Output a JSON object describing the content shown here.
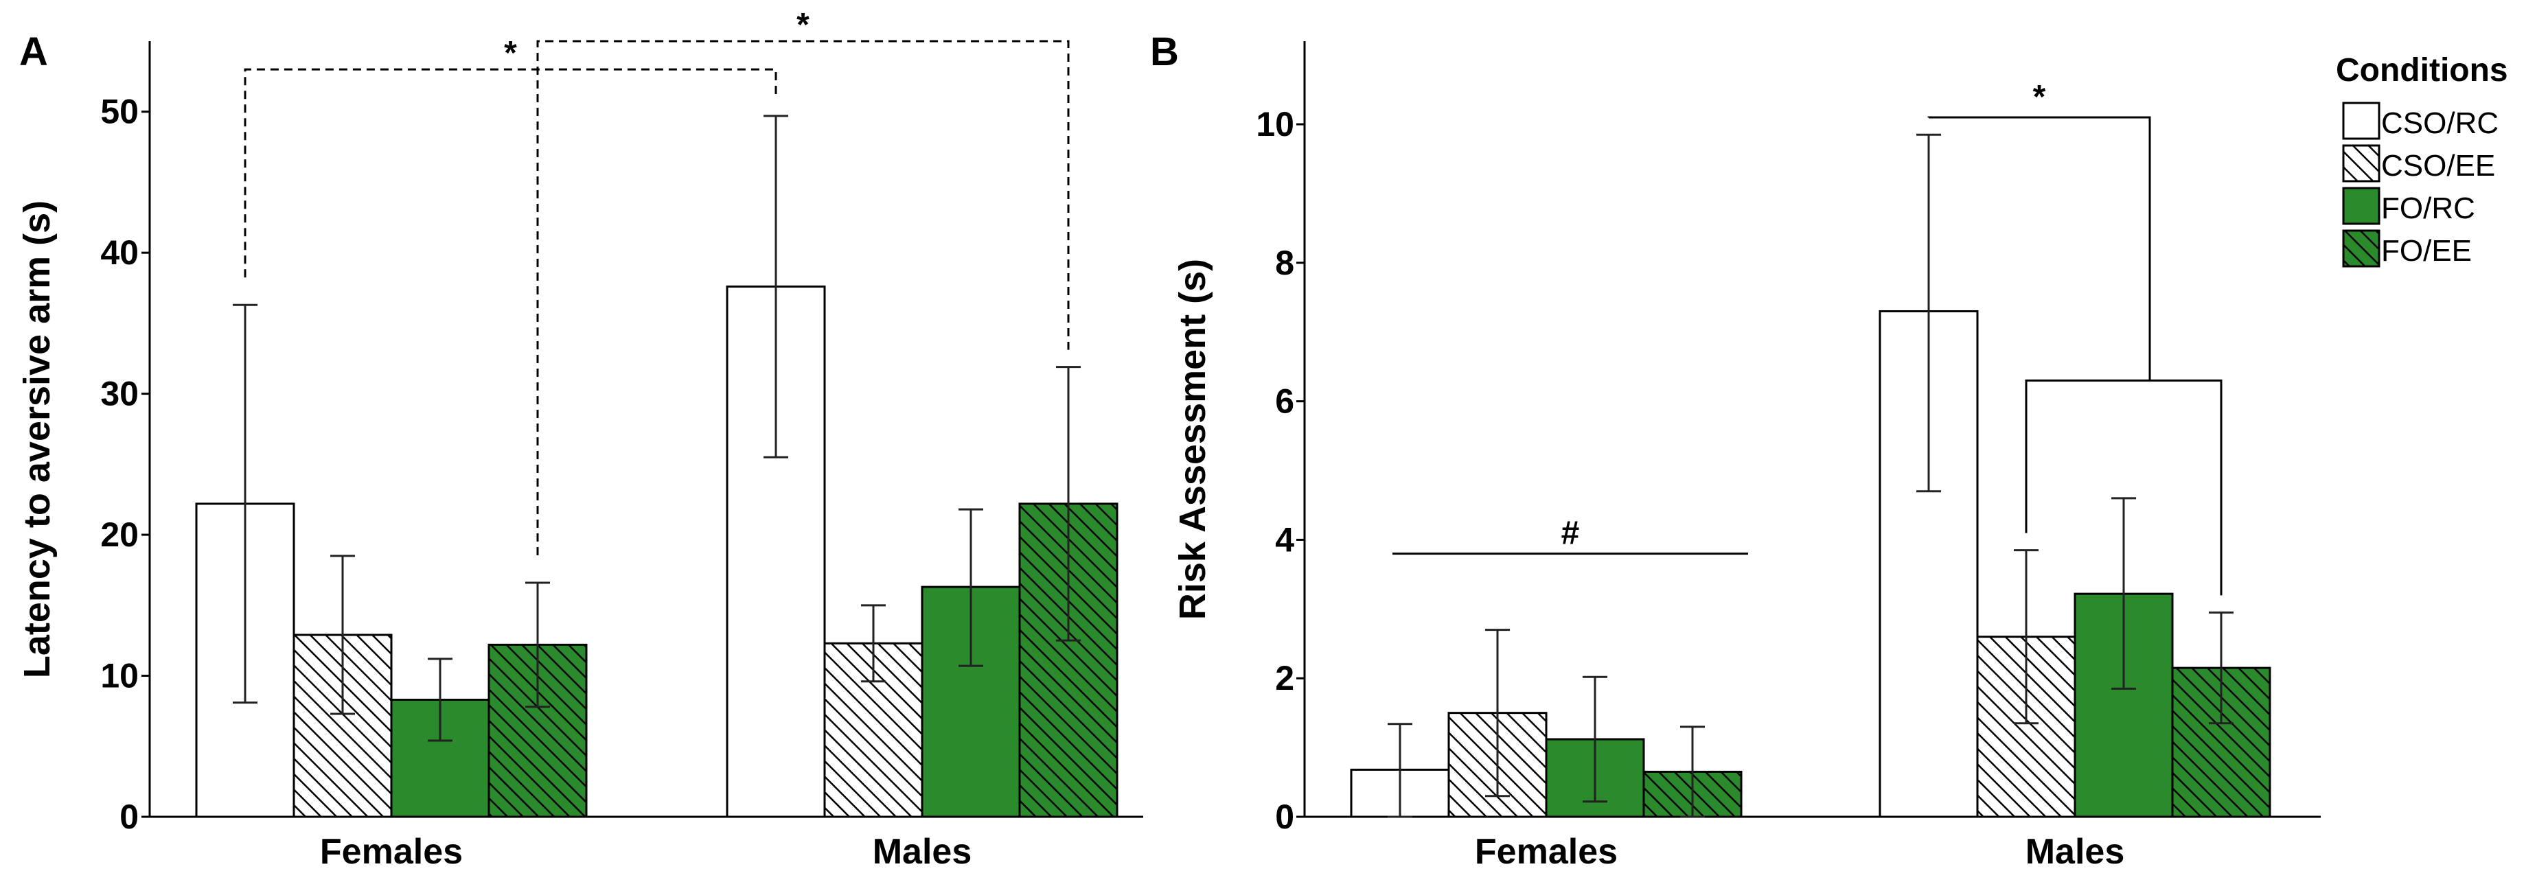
{
  "colors": {
    "green": "#2b8a2b",
    "white": "#ffffff",
    "hatch": "#000000"
  },
  "legend": {
    "title": "Conditions",
    "entries": [
      {
        "label": "CSO/RC",
        "fill": "white",
        "hatched": false
      },
      {
        "label": "CSO/EE",
        "fill": "white",
        "hatched": true
      },
      {
        "label": "FO/RC",
        "fill": "green",
        "hatched": false
      },
      {
        "label": "FO/EE",
        "fill": "green",
        "hatched": true
      }
    ]
  },
  "chart_data": [
    {
      "panel": "A",
      "type": "bar",
      "ylabel": "Latency to aversive arm (s)",
      "ylim": [
        0,
        55
      ],
      "yticks": [
        0,
        10,
        20,
        30,
        40,
        50
      ],
      "categories": [
        "Females",
        "Males"
      ],
      "series": [
        {
          "name": "CSO/RC",
          "values": [
            22.2,
            37.6
          ],
          "err_low": [
            8.1,
            25.5
          ],
          "err_high": [
            36.3,
            49.7
          ]
        },
        {
          "name": "CSO/EE",
          "values": [
            12.9,
            12.3
          ],
          "err_low": [
            7.3,
            9.6
          ],
          "err_high": [
            18.5,
            15.0
          ]
        },
        {
          "name": "FO/RC",
          "values": [
            8.3,
            16.3
          ],
          "err_low": [
            5.4,
            10.7
          ],
          "err_high": [
            11.2,
            21.8
          ]
        },
        {
          "name": "FO/EE",
          "values": [
            12.2,
            22.2
          ],
          "err_low": [
            7.8,
            12.5
          ],
          "err_high": [
            16.6,
            31.9
          ]
        }
      ],
      "annotations": [
        {
          "type": "dashed-bracket",
          "from": [
            0,
            0
          ],
          "to": [
            1,
            0
          ],
          "top": 53.0,
          "label": "*"
        },
        {
          "type": "dashed-bracket",
          "from": [
            0,
            3
          ],
          "to": [
            1,
            3
          ],
          "top": 55.0,
          "label": "*"
        }
      ]
    },
    {
      "panel": "B",
      "type": "bar",
      "ylabel": "Risk Assessment (s)",
      "ylim": [
        0,
        11.2
      ],
      "yticks": [
        0,
        2,
        4,
        6,
        8,
        10
      ],
      "categories": [
        "Females",
        "Males"
      ],
      "series": [
        {
          "name": "CSO/RC",
          "values": [
            0.68,
            7.3
          ],
          "err_low": [
            0.0,
            4.7
          ],
          "err_high": [
            1.34,
            9.85
          ]
        },
        {
          "name": "CSO/EE",
          "values": [
            1.5,
            2.6
          ],
          "err_low": [
            0.3,
            1.35
          ],
          "err_high": [
            2.7,
            3.85
          ]
        },
        {
          "name": "FO/RC",
          "values": [
            1.12,
            3.22
          ],
          "err_low": [
            0.22,
            1.85
          ],
          "err_high": [
            2.02,
            4.6
          ]
        },
        {
          "name": "FO/EE",
          "values": [
            0.65,
            2.15
          ],
          "err_low": [
            0.0,
            1.35
          ],
          "err_high": [
            1.3,
            2.95
          ]
        }
      ],
      "annotations": [
        {
          "type": "line",
          "category": 0,
          "y": 3.8,
          "label": "#"
        },
        {
          "type": "nested-bracket",
          "category": 1,
          "left": 0,
          "rightGroup": [
            1,
            3
          ],
          "innerTop": 6.3,
          "top": 10.1,
          "label": "*"
        }
      ]
    }
  ]
}
